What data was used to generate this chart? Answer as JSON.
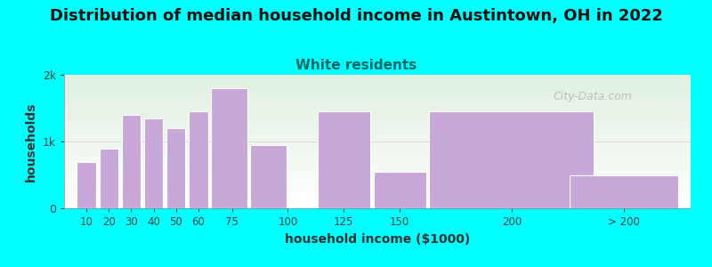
{
  "title": "Distribution of median household income in Austintown, OH in 2022",
  "subtitle": "White residents",
  "xlabel": "household income ($1000)",
  "ylabel": "households",
  "background_color": "#00FFFF",
  "bar_color": "#c8a8d8",
  "bar_edge_color": "#ffffff",
  "values": [
    700,
    900,
    1400,
    1350,
    1200,
    1450,
    1800,
    950,
    1450,
    550,
    1450,
    500
  ],
  "bar_lefts": [
    5,
    15,
    25,
    35,
    45,
    55,
    65,
    82.5,
    112.5,
    137.5,
    162.5,
    225
  ],
  "bar_widths": [
    10,
    10,
    10,
    10,
    10,
    10,
    17.5,
    17.5,
    25,
    25,
    75,
    50
  ],
  "ylim": [
    0,
    2000
  ],
  "yticks": [
    0,
    1000,
    2000
  ],
  "ytick_labels": [
    "0",
    "1k",
    "2k"
  ],
  "xtick_labels": [
    "10",
    "20",
    "30",
    "40",
    "50",
    "60",
    "75",
    "100",
    "125",
    "150",
    "200",
    "> 200"
  ],
  "xtick_positions": [
    10,
    20,
    30,
    40,
    50,
    60,
    75,
    100,
    125,
    150,
    200,
    250
  ],
  "title_fontsize": 13,
  "subtitle_fontsize": 11,
  "subtitle_color": "#006666",
  "axis_label_fontsize": 10,
  "watermark_text": "City-Data.com",
  "watermark_color": "#b0b8b0"
}
